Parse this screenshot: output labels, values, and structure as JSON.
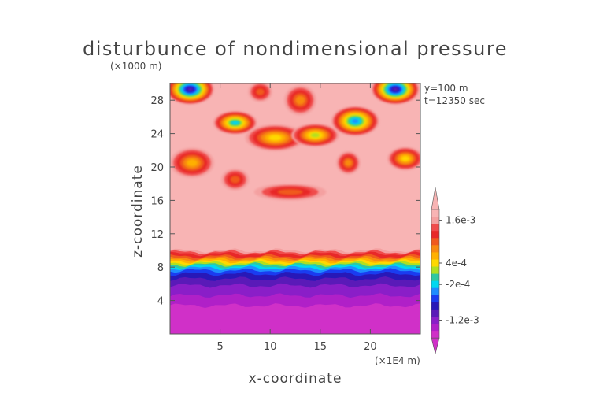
{
  "chart_data": {
    "type": "heatmap",
    "title": "disturbunce of nondimensional pressure",
    "xlabel": "x-coordinate",
    "ylabel": "z-coordinate",
    "x_unit": "(×1E4 m)",
    "y_unit": "(×1000 m)",
    "annotations": [
      "y=100 m",
      "t=12350 sec"
    ],
    "xlim": [
      0,
      25
    ],
    "ylim": [
      0,
      30
    ],
    "x_ticks": [
      5,
      10,
      15,
      20
    ],
    "y_ticks": [
      4,
      8,
      12,
      16,
      20,
      24,
      28
    ],
    "x_tick_labels": [
      "5",
      "10",
      "15",
      "20"
    ],
    "y_tick_labels": [
      "4",
      "8",
      "12",
      "16",
      "20",
      "24",
      "28"
    ],
    "colorbar": {
      "labels": [
        {
          "value": 0.0016,
          "text": "1.6e-3"
        },
        {
          "value": 0.0004,
          "text": "4e-4"
        },
        {
          "value": -0.0002,
          "text": "-2e-4"
        },
        {
          "value": -0.0012,
          "text": "-1.2e-3"
        }
      ],
      "levels": [
        {
          "value": 0.0018,
          "color": "#f8b4b4"
        },
        {
          "value": 0.0016,
          "color": "#f4a0a0"
        },
        {
          "value": 0.0014,
          "color": "#f04b4b"
        },
        {
          "value": 0.0012,
          "color": "#e82828"
        },
        {
          "value": 0.001,
          "color": "#f05a1e"
        },
        {
          "value": 0.0008,
          "color": "#f88a10"
        },
        {
          "value": 0.0006,
          "color": "#ffb000"
        },
        {
          "value": 0.0004,
          "color": "#ffd800"
        },
        {
          "value": 0.0002,
          "color": "#b0e020"
        },
        {
          "value": 0.0,
          "color": "#30c8a0"
        },
        {
          "value": -0.0002,
          "color": "#00d8f0"
        },
        {
          "value": -0.0004,
          "color": "#1e8cff"
        },
        {
          "value": -0.0006,
          "color": "#1a3cf0"
        },
        {
          "value": -0.0008,
          "color": "#2818b8"
        },
        {
          "value": -0.001,
          "color": "#5a1ab8"
        },
        {
          "value": -0.0012,
          "color": "#8a1ec8"
        },
        {
          "value": -0.0014,
          "color": "#b020c8"
        },
        {
          "value": -0.0016,
          "color": "#d030c8"
        }
      ]
    },
    "features": [
      {
        "name": "background",
        "value": 0.0018
      },
      {
        "name": "low-band",
        "z_top": 7.5,
        "value": -0.0016
      },
      {
        "name": "gradient-band",
        "z_range": [
          7.5,
          10
        ],
        "value_range": [
          -0.0016,
          0.0016
        ]
      },
      {
        "name": "upper-cells",
        "z_range": [
          15.5,
          30
        ],
        "value_range": [
          -0.0006,
          0.0016
        ]
      }
    ]
  }
}
